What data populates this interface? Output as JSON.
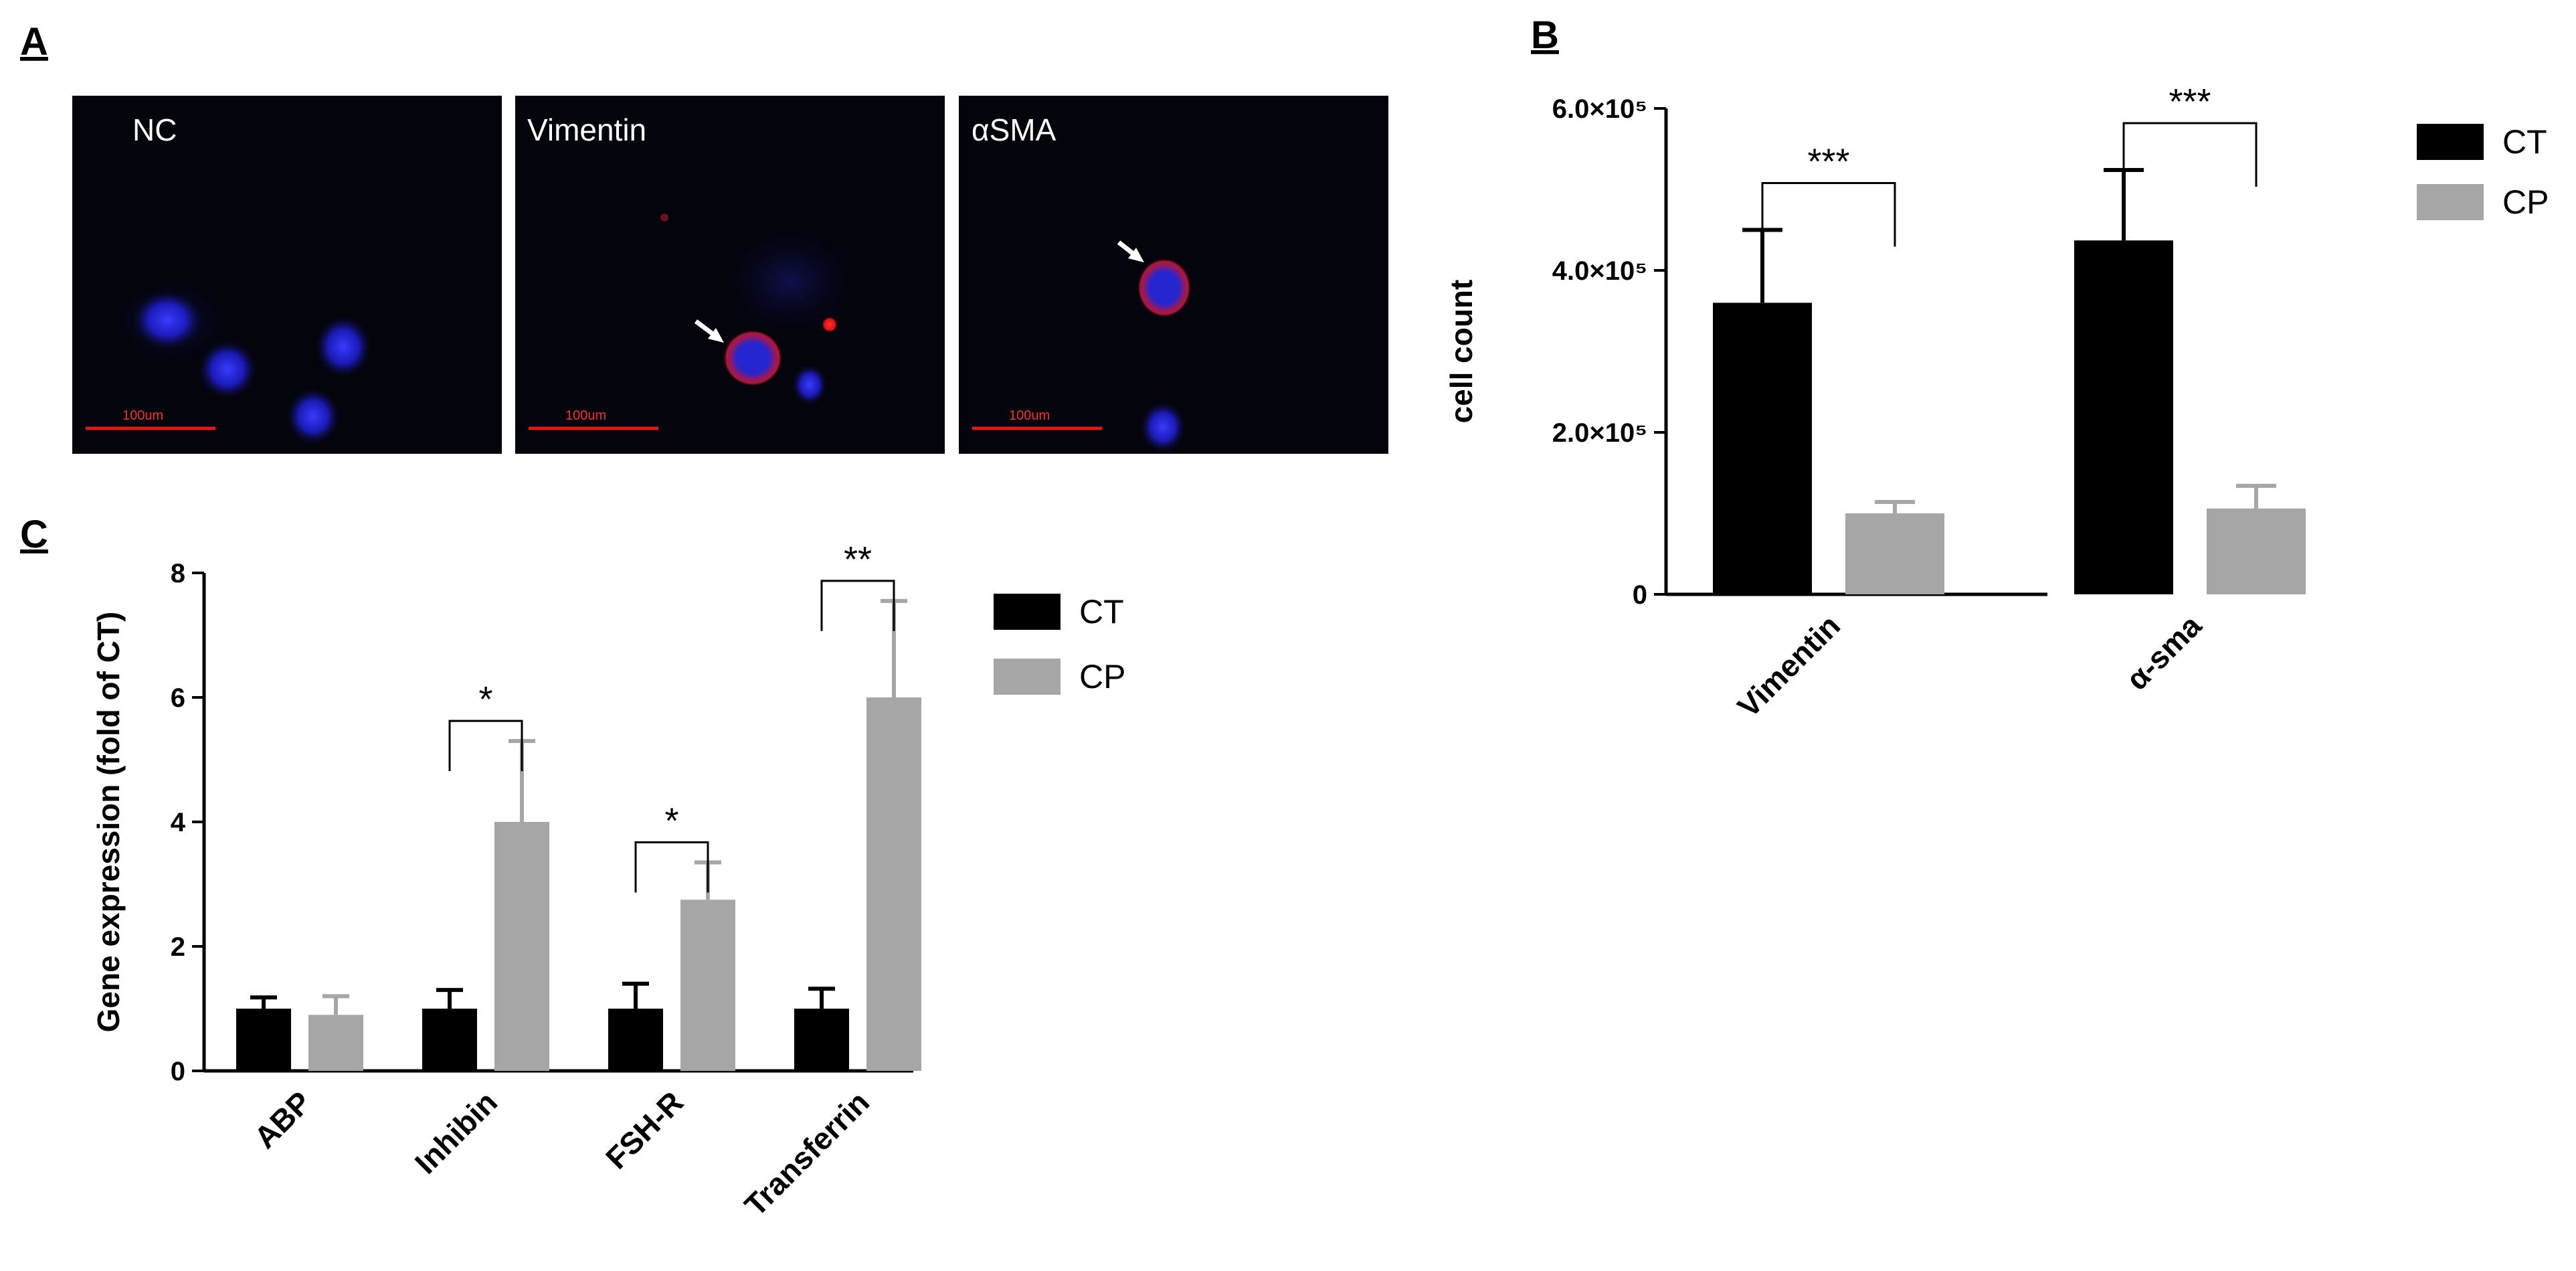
{
  "panels": {
    "a": {
      "letter": "A"
    },
    "b": {
      "letter": "B"
    },
    "c": {
      "letter": "C"
    }
  },
  "micrographs": [
    {
      "label": "NC",
      "scale_bar": "100um"
    },
    {
      "label": "Vimentin",
      "scale_bar": "100um"
    },
    {
      "label": "αSMA",
      "scale_bar": "100um"
    }
  ],
  "chart_data": [
    {
      "id": "b",
      "type": "bar",
      "title": "",
      "xlabel": "",
      "ylabel": "cell count",
      "ylim": [
        0,
        600000
      ],
      "categories": [
        "Vimentin",
        "α-sma"
      ],
      "yticks": [
        {
          "value": 0,
          "label": "0"
        },
        {
          "value": 200000,
          "label": "2.0×10⁵"
        },
        {
          "value": 400000,
          "label": "4.0×10⁵"
        },
        {
          "value": 600000,
          "label": "6.0×10⁵"
        }
      ],
      "series": [
        {
          "name": "CT",
          "color": "#000000",
          "values": [
            360000,
            437000
          ],
          "errors": [
            90000,
            87000
          ]
        },
        {
          "name": "CP",
          "color": "#a6a6a6",
          "values": [
            100000,
            106000
          ],
          "errors": [
            14000,
            28000
          ]
        }
      ],
      "significance": [
        {
          "category": 0,
          "label": "***"
        },
        {
          "category": 1,
          "label": "***"
        }
      ],
      "legend_position": "top-right",
      "grid": false
    },
    {
      "id": "c",
      "type": "bar",
      "title": "",
      "xlabel": "",
      "ylabel": "Gene expression (fold of CT)",
      "ylim": [
        0,
        8
      ],
      "categories": [
        "ABP",
        "Inhibin",
        "FSH-R",
        "Transferrin"
      ],
      "yticks": [
        {
          "value": 0,
          "label": "0"
        },
        {
          "value": 2,
          "label": "2"
        },
        {
          "value": 4,
          "label": "4"
        },
        {
          "value": 6,
          "label": "6"
        },
        {
          "value": 8,
          "label": "8"
        }
      ],
      "series": [
        {
          "name": "CT",
          "color": "#000000",
          "values": [
            1.0,
            1.0,
            1.0,
            1.0
          ],
          "errors": [
            0.18,
            0.3,
            0.4,
            0.32
          ]
        },
        {
          "name": "CP",
          "color": "#a6a6a6",
          "values": [
            0.9,
            4.0,
            2.75,
            6.0
          ],
          "errors": [
            0.3,
            1.3,
            0.6,
            1.55
          ]
        }
      ],
      "significance": [
        {
          "category": 1,
          "label": "*"
        },
        {
          "category": 2,
          "label": "*"
        },
        {
          "category": 3,
          "label": "**"
        }
      ],
      "legend_position": "top-right",
      "grid": false
    }
  ]
}
